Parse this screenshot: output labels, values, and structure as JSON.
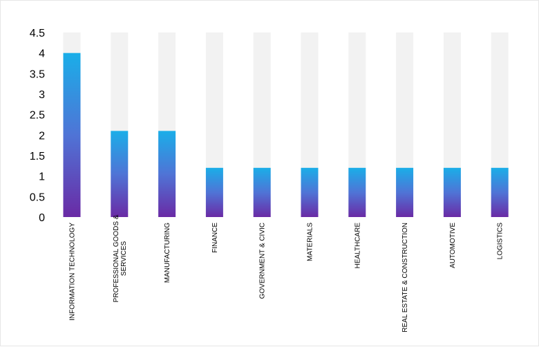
{
  "chart_data": {
    "type": "bar",
    "title": "",
    "xlabel": "",
    "ylabel": "",
    "ylim": [
      0,
      4.5
    ],
    "yticks": [
      "0",
      "0.5",
      "1",
      "1.5",
      "2",
      "2.5",
      "3",
      "3.5",
      "4",
      "4.5"
    ],
    "categories": [
      [
        "INFORMATION TECHNOLOGY"
      ],
      [
        "PROFESSIONAL GOODS &",
        "SERVICES"
      ],
      [
        "MANUFACTURING"
      ],
      [
        "FINANCE"
      ],
      [
        "GOVERNMENT & CIVIC"
      ],
      [
        "MATERIALS"
      ],
      [
        "HEALTHCARE"
      ],
      [
        "REAL ESTATE & CONSTRUCTION"
      ],
      [
        "AUTOMOTIVE"
      ],
      [
        "LOGISTICS"
      ]
    ],
    "values": [
      4.0,
      2.1,
      2.1,
      1.2,
      1.2,
      1.2,
      1.2,
      1.2,
      1.2,
      1.2
    ],
    "background_bar_max": 4.5,
    "grid": false,
    "legend": "none",
    "colors": {
      "bar_top": "#1aaee8",
      "bar_mid": "#4f74d6",
      "bar_bottom": "#6a2aa5",
      "track": "#f2f2f2"
    }
  }
}
